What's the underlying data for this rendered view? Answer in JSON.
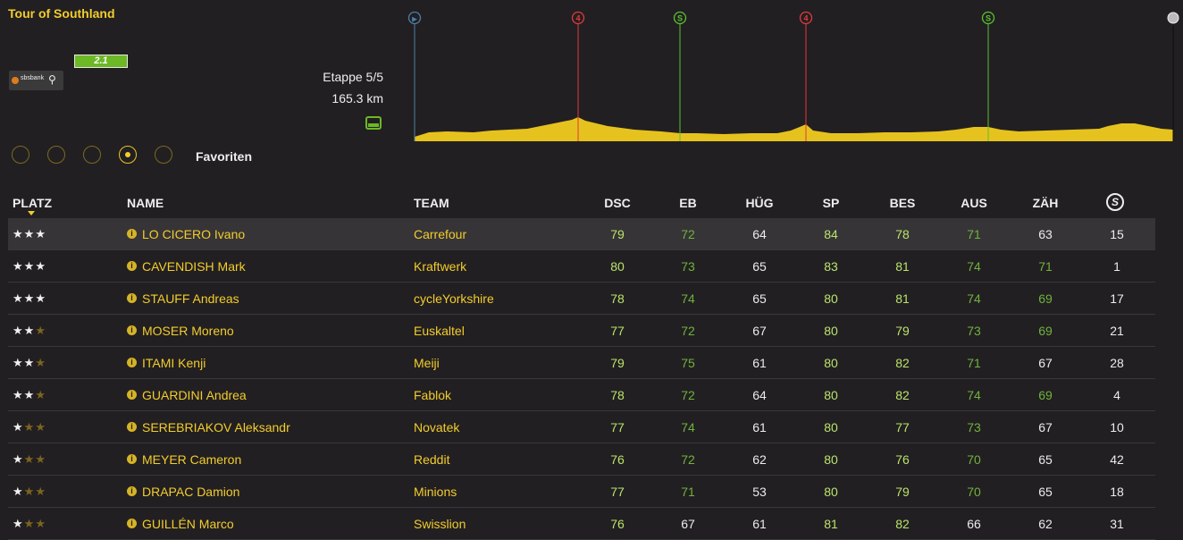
{
  "race": {
    "title": "Tour of Southland",
    "class_badge": "2.1",
    "sponsor_text": "sbsbank",
    "stage": "Etappe 5/5",
    "distance": "165.3 km"
  },
  "filters": {
    "label": "Favoriten",
    "selected_index": 3,
    "count": 5
  },
  "profile": {
    "markers": [
      {
        "type": "start",
        "label": "▶",
        "color": "#4c7fa3"
      },
      {
        "type": "climb",
        "label": "4",
        "color": "#e03a3a"
      },
      {
        "type": "sprint",
        "label": "S",
        "color": "#58c22e"
      },
      {
        "type": "climb",
        "label": "4",
        "color": "#e03a3a"
      },
      {
        "type": "sprint",
        "label": "S",
        "color": "#58c22e"
      },
      {
        "type": "finish",
        "label": "",
        "color": "#eeeeee"
      }
    ]
  },
  "table": {
    "headers": {
      "rank": "PLATZ",
      "name": "NAME",
      "team": "TEAM",
      "dsc": "DSC",
      "eb": "EB",
      "hug": "HÜG",
      "sp": "SP",
      "bes": "BES",
      "aus": "AUS",
      "zah": "ZÄH",
      "sprint_icon": "S"
    },
    "rows": [
      {
        "stars": 3,
        "name": "LO CICERO Ivano",
        "team": "Carrefour",
        "dsc": "79",
        "eb": "72",
        "hug": "64",
        "sp": "84",
        "bes": "78",
        "aus": "71",
        "zah": "63",
        "s": "15"
      },
      {
        "stars": 3,
        "name": "CAVENDISH Mark",
        "team": "Kraftwerk",
        "dsc": "80",
        "eb": "73",
        "hug": "65",
        "sp": "83",
        "bes": "81",
        "aus": "74",
        "zah": "71",
        "s": "1"
      },
      {
        "stars": 3,
        "name": "STAUFF Andreas",
        "team": "cycleYorkshire",
        "dsc": "78",
        "eb": "74",
        "hug": "65",
        "sp": "80",
        "bes": "81",
        "aus": "74",
        "zah": "69",
        "s": "17"
      },
      {
        "stars": 2,
        "name": "MOSER Moreno",
        "team": "Euskaltel",
        "dsc": "77",
        "eb": "72",
        "hug": "67",
        "sp": "80",
        "bes": "79",
        "aus": "73",
        "zah": "69",
        "s": "21"
      },
      {
        "stars": 2,
        "name": "ITAMI Kenji",
        "team": "Meiji",
        "dsc": "79",
        "eb": "75",
        "hug": "61",
        "sp": "80",
        "bes": "82",
        "aus": "71",
        "zah": "67",
        "s": "28"
      },
      {
        "stars": 2,
        "name": "GUARDINI Andrea",
        "team": "Fablok",
        "dsc": "78",
        "eb": "72",
        "hug": "64",
        "sp": "80",
        "bes": "82",
        "aus": "74",
        "zah": "69",
        "s": "4"
      },
      {
        "stars": 1,
        "name": "SEREBRIAKOV Aleksandr",
        "team": "Novatek",
        "dsc": "77",
        "eb": "74",
        "hug": "61",
        "sp": "80",
        "bes": "77",
        "aus": "73",
        "zah": "67",
        "s": "10"
      },
      {
        "stars": 1,
        "name": "MEYER Cameron",
        "team": "Reddit",
        "dsc": "76",
        "eb": "72",
        "hug": "62",
        "sp": "80",
        "bes": "76",
        "aus": "70",
        "zah": "65",
        "s": "42"
      },
      {
        "stars": 1,
        "name": "DRAPAC Damion",
        "team": "Minions",
        "dsc": "77",
        "eb": "71",
        "hug": "53",
        "sp": "80",
        "bes": "79",
        "aus": "70",
        "zah": "65",
        "s": "18"
      },
      {
        "stars": 1,
        "name": "GUILLÉN Marco",
        "team": "Swisslion",
        "dsc": "76",
        "eb": "67",
        "hug": "61",
        "sp": "81",
        "bes": "82",
        "aus": "66",
        "zah": "62",
        "s": "31"
      }
    ]
  }
}
